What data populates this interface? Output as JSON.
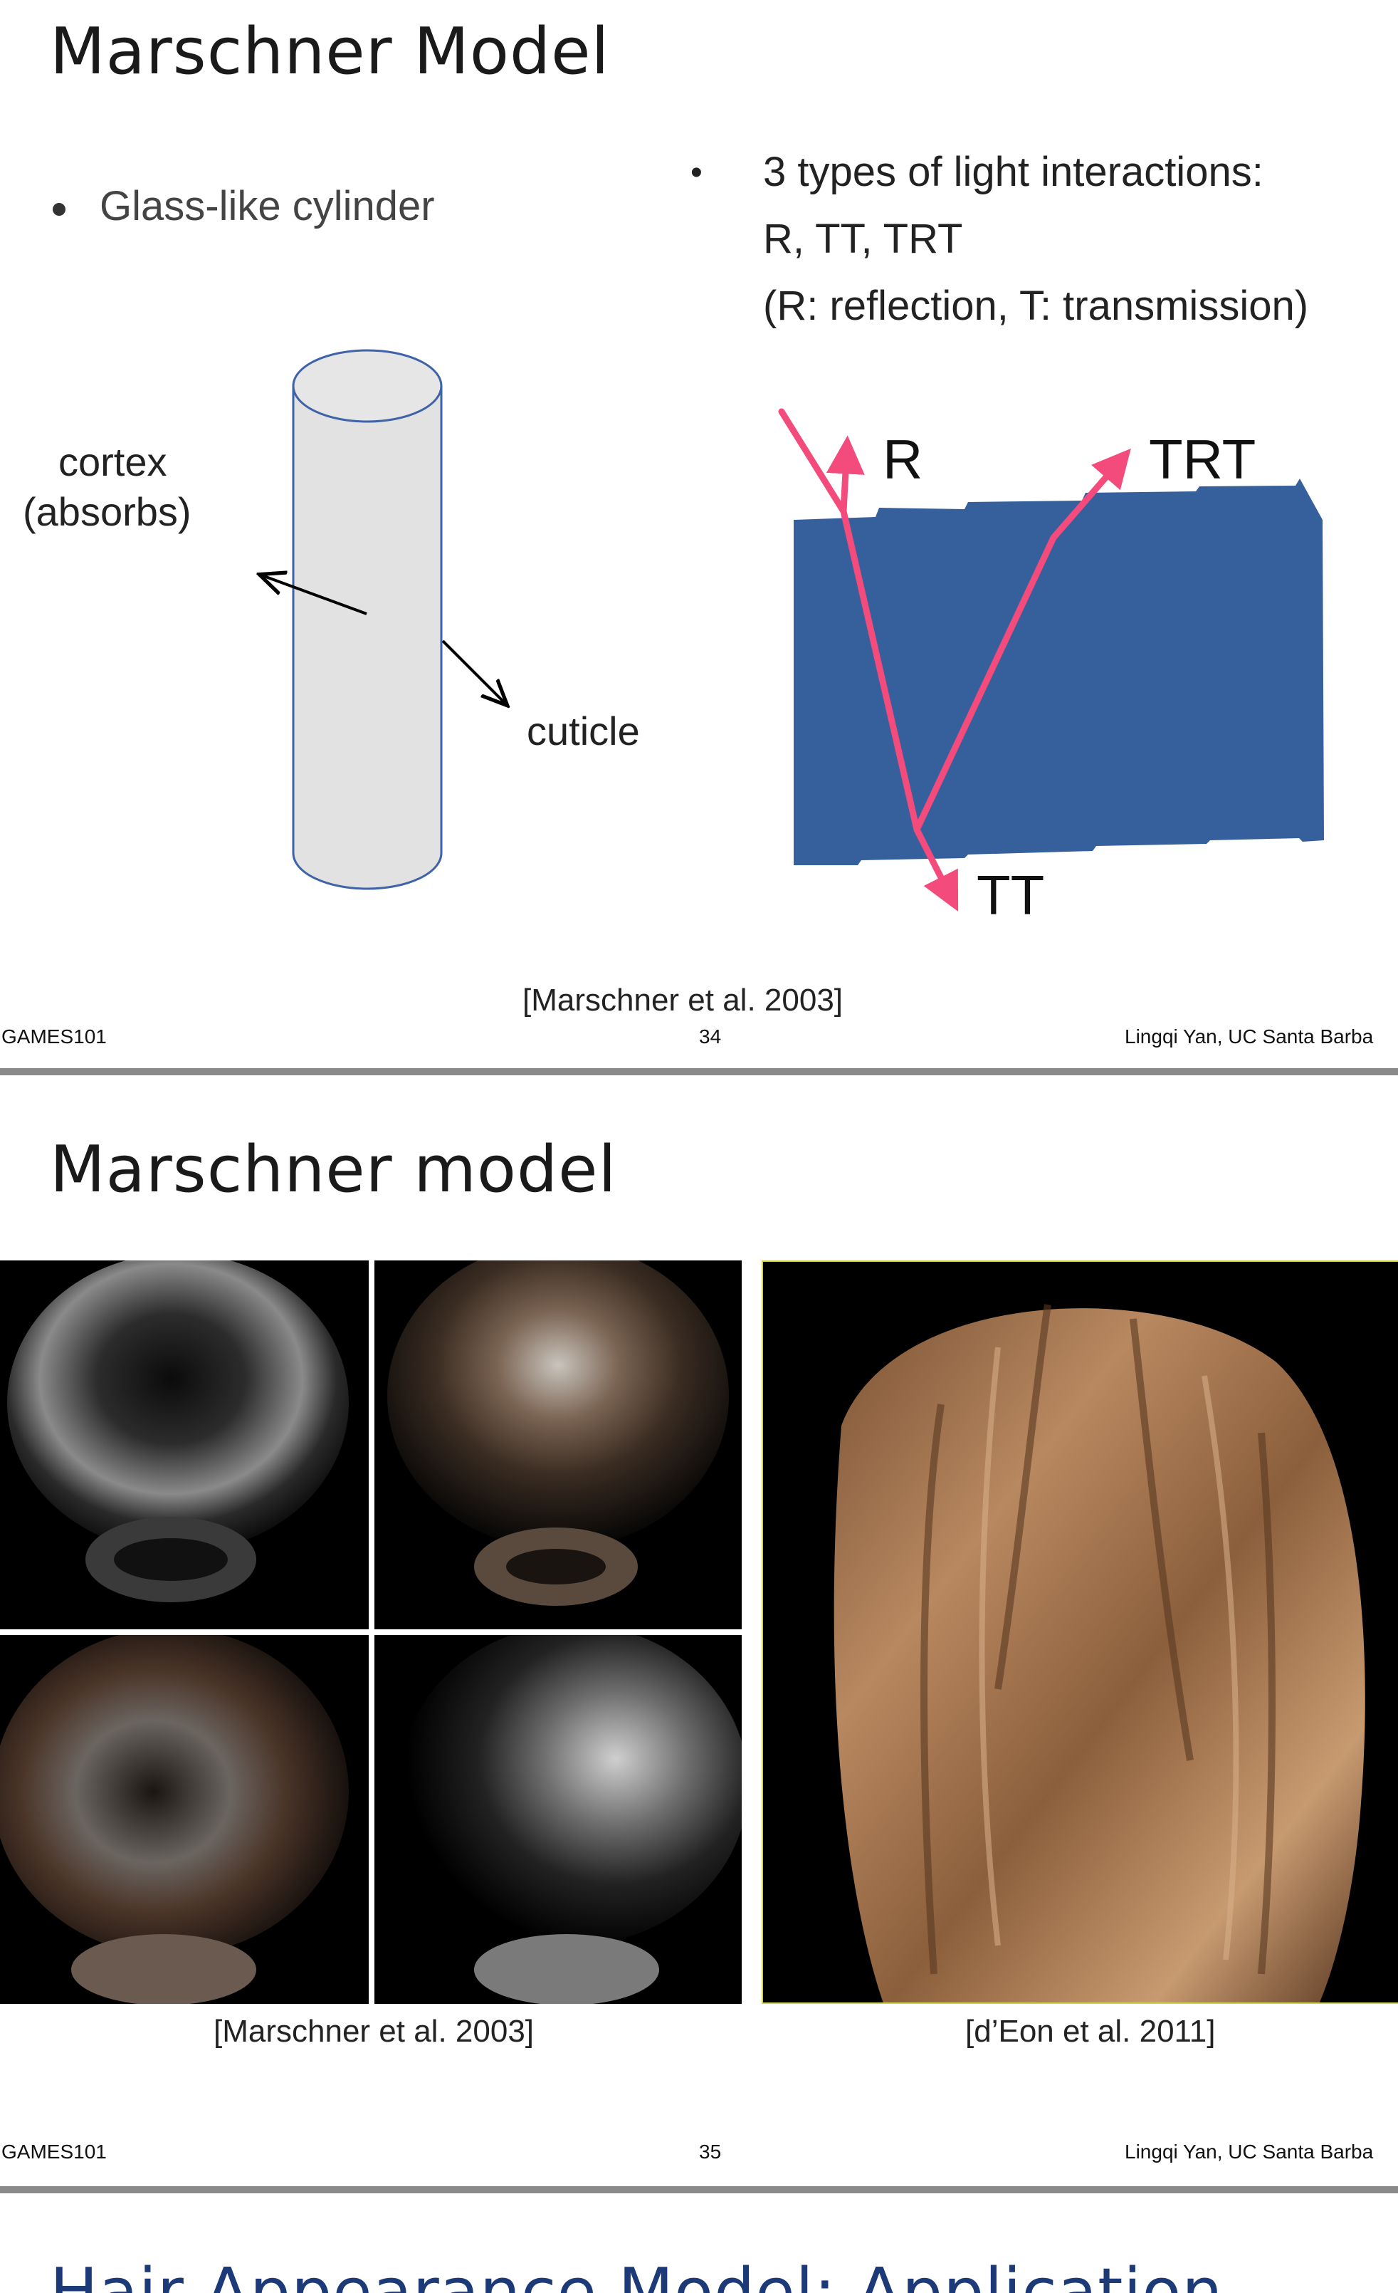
{
  "slide1": {
    "title": "Marschner Model",
    "bullet_left": "Glass-like cylinder",
    "bullet_right": {
      "marker": "•",
      "line1": "3 types of light interactions:",
      "line2": "R, TT, TRT",
      "line3": "(R: reflection, T: transmission)"
    },
    "label_cortex_line1": "cortex",
    "label_cortex_line2": "(absorbs)",
    "label_cuticle": "cuticle",
    "label_R": "R",
    "label_TRT": "TRT",
    "label_TT": "TT",
    "citation": "[Marschner et al. 2003]",
    "footer_left": "GAMES101",
    "page_number": "34",
    "footer_right": "Lingqi Yan, UC Santa Barba",
    "colors": {
      "hair_block": "#36609b",
      "ray": "#f24b7c",
      "cylinder_fill": "#e2e2e2",
      "cylinder_stroke": "#3f63a8"
    }
  },
  "slide2": {
    "title": "Marschner model",
    "citation_left": "[Marschner et al. 2003]",
    "citation_right": "[d’Eon et al. 2011]",
    "footer_left": "GAMES101",
    "page_number": "35",
    "footer_right": "Lingqi Yan, UC Santa Barba"
  },
  "slide3": {
    "title": "Hair Appearance Model: Application"
  }
}
